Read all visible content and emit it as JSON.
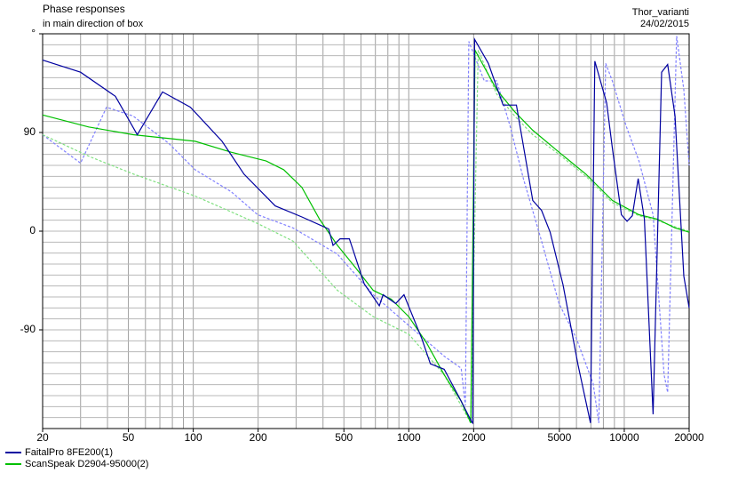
{
  "chart_data": {
    "type": "line",
    "title": "Phase responses",
    "subtitle": "in main direction of box",
    "project": "Thor_varianti",
    "date": "24/02/2015",
    "xscale": "log",
    "xlim": [
      20,
      20000
    ],
    "ylim": [
      -180,
      180
    ],
    "xticks": [
      20,
      50,
      100,
      200,
      500,
      1000,
      2000,
      5000,
      10000,
      20000
    ],
    "yticks": [
      -90,
      0,
      90,
      {
        "value": 180,
        "label": "°"
      }
    ],
    "xgrid": [
      20,
      30,
      40,
      50,
      60,
      70,
      80,
      90,
      100,
      200,
      300,
      400,
      500,
      600,
      700,
      800,
      900,
      1000,
      2000,
      3000,
      4000,
      5000,
      6000,
      7000,
      8000,
      9000,
      10000,
      20000
    ],
    "ygrid": [
      -170,
      -160,
      -150,
      -140,
      -130,
      -120,
      -110,
      -100,
      -90,
      -80,
      -70,
      -60,
      -50,
      -40,
      -30,
      -20,
      -10,
      0,
      10,
      20,
      30,
      40,
      50,
      60,
      70,
      80,
      90,
      100,
      110,
      120,
      130,
      140,
      150,
      160,
      170
    ],
    "series": [
      {
        "name": "FaitalPro 8FE200(1)",
        "color": "#0000a0",
        "dash": false,
        "x": [
          20,
          30,
          43.5,
          55,
          72,
          97,
          136,
          172,
          240,
          319,
          425,
          445,
          480,
          530,
          621,
          730,
          760,
          870,
          950,
          1150,
          1260,
          1460,
          1750,
          1960,
          1980,
          2020,
          2340,
          2740,
          3160,
          3760,
          4130,
          4530,
          5200,
          6100,
          6970,
          7300,
          8280,
          8800,
          9700,
          10300,
          10900,
          11600,
          12400,
          13600,
          14900,
          15900,
          17200,
          18900,
          20000
        ],
        "values": [
          156,
          145,
          123,
          88,
          127,
          113,
          82,
          52,
          23,
          13,
          2,
          -13,
          -7,
          -7,
          -48,
          -68,
          -58,
          -66,
          -58,
          -98,
          -121,
          -126,
          -155,
          -174,
          -175,
          175,
          153,
          115,
          115,
          28,
          19,
          -1,
          -49,
          -122,
          -175,
          155,
          117,
          76,
          15,
          9,
          14,
          48,
          11,
          -167,
          145,
          152,
          105,
          -41,
          -70
        ]
      },
      {
        "name": "ScanSpeak D2904-95000(2)",
        "color": "#00c000",
        "dash": false,
        "x": [
          20,
          32.7,
          52.6,
          102,
          150,
          218,
          263,
          319,
          385,
          467,
          565,
          684,
          830,
          1000,
          1210,
          1460,
          1750,
          1940,
          2030,
          2560,
          3100,
          3760,
          4980,
          6640,
          8810,
          11700,
          14200,
          17200,
          20000
        ],
        "values": [
          106,
          95,
          88,
          82,
          72,
          64,
          56,
          40,
          11,
          -13,
          -33,
          -54,
          -62,
          -78,
          -102,
          -131,
          -155,
          -175,
          165,
          129,
          109,
          92,
          72,
          52,
          28,
          15,
          11,
          3,
          -1
        ]
      },
      {
        "color": "#8080ff",
        "dash": true,
        "x": [
          20,
          30,
          39.6,
          52.6,
          77,
          102,
          150,
          199,
          290,
          467,
          684,
          1000,
          1460,
          1750,
          1830,
          1900,
          2240,
          2560,
          2950,
          3400,
          4130,
          4980,
          6000,
          7170,
          7620,
          8200,
          8800,
          10200,
          11700,
          13600,
          15300,
          15900,
          17500,
          18900,
          20000
        ],
        "values": [
          88,
          62,
          113,
          105,
          80,
          56,
          36,
          15,
          3,
          -21,
          -58,
          -86,
          -114,
          -125,
          -159,
          173,
          137,
          137,
          96,
          48,
          -9,
          -66,
          -98,
          -139,
          -175,
          153,
          137,
          96,
          64,
          15,
          -131,
          -147,
          178,
          129,
          60
        ]
      },
      {
        "color": "#80e080",
        "dash": true,
        "x": [
          20,
          33,
          53,
          102,
          199,
          290,
          467,
          684,
          1000,
          1460,
          1940,
          2100,
          2560,
          3100,
          3760,
          4980,
          6640,
          8810,
          11700,
          14200,
          17200,
          20000
        ],
        "values": [
          88,
          68,
          52,
          32,
          7,
          -9,
          -54,
          -78,
          -94,
          -131,
          -175,
          165,
          125,
          105,
          88,
          70,
          50,
          26,
          14,
          10,
          4,
          0
        ]
      }
    ]
  }
}
